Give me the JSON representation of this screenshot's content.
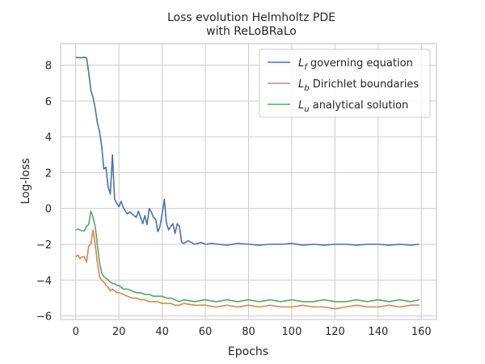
{
  "chart_data": {
    "type": "line",
    "title": "Loss evolution Helmholtz PDE",
    "subtitle": "with ReLoBRaLo",
    "xlabel": "Epochs",
    "ylabel": "Log-loss",
    "xlim": [
      -7,
      167
    ],
    "ylim": [
      -6.2,
      9.2
    ],
    "xticks": [
      0,
      20,
      40,
      60,
      80,
      100,
      120,
      140,
      160
    ],
    "yticks": [
      -6,
      -4,
      -2,
      0,
      2,
      4,
      6,
      8
    ],
    "grid": true,
    "legend_position": "top-right",
    "series": [
      {
        "name": "governing equation",
        "symbol": "L",
        "subscript": "f",
        "color": "#4c72b0",
        "x": [
          0,
          1,
          2,
          3,
          4,
          5,
          6,
          7,
          8,
          9,
          10,
          11,
          12,
          13,
          14,
          15,
          16,
          17,
          18,
          19,
          20,
          21,
          22,
          23,
          24,
          25,
          26,
          27,
          28,
          29,
          30,
          31,
          32,
          33,
          34,
          35,
          36,
          37,
          38,
          39,
          40,
          41,
          42,
          43,
          44,
          45,
          46,
          47,
          48,
          49,
          50,
          52,
          55,
          58,
          60,
          63,
          66,
          70,
          75,
          80,
          85,
          90,
          95,
          100,
          105,
          110,
          115,
          120,
          125,
          130,
          135,
          140,
          145,
          150,
          155,
          159
        ],
        "y": [
          8.45,
          8.42,
          8.42,
          8.42,
          8.45,
          8.4,
          7.6,
          6.6,
          6.2,
          5.6,
          4.8,
          4.3,
          3.5,
          2.2,
          2.3,
          1.2,
          0.8,
          3.0,
          0.5,
          0.3,
          0.1,
          0.4,
          0.05,
          -0.15,
          -0.3,
          -0.2,
          -0.3,
          -0.4,
          -0.5,
          -0.15,
          -0.5,
          -0.85,
          -0.4,
          -0.9,
          0.0,
          -0.2,
          -0.5,
          -0.6,
          -1.3,
          -1.0,
          -0.3,
          0.5,
          -0.8,
          -1.2,
          -1.0,
          -0.85,
          -1.4,
          -0.85,
          -1.0,
          -1.9,
          -1.95,
          -1.8,
          -2.0,
          -1.9,
          -2.0,
          -1.95,
          -2.0,
          -2.05,
          -1.95,
          -2.0,
          -2.05,
          -2.0,
          -2.0,
          -1.95,
          -2.05,
          -2.0,
          -2.05,
          -2.0,
          -2.0,
          -2.05,
          -2.0,
          -2.0,
          -2.05,
          -2.0,
          -2.05,
          -2.0
        ]
      },
      {
        "name": "Dirichlet boundaries",
        "symbol": "L",
        "subscript": "b",
        "color": "#dd8452",
        "x": [
          0,
          1,
          2,
          3,
          4,
          5,
          6,
          7,
          8,
          9,
          10,
          11,
          12,
          13,
          14,
          15,
          16,
          17,
          18,
          19,
          20,
          22,
          24,
          26,
          28,
          30,
          32,
          34,
          36,
          38,
          40,
          42,
          44,
          46,
          48,
          50,
          55,
          60,
          65,
          70,
          75,
          80,
          85,
          90,
          95,
          100,
          105,
          110,
          115,
          120,
          125,
          130,
          135,
          140,
          145,
          150,
          155,
          159
        ],
        "y": [
          -2.7,
          -2.6,
          -2.8,
          -2.7,
          -2.7,
          -3.0,
          -2.1,
          -2.0,
          -1.2,
          -2.0,
          -3.0,
          -3.8,
          -4.0,
          -4.1,
          -4.3,
          -4.4,
          -4.6,
          -4.5,
          -4.6,
          -4.7,
          -4.7,
          -4.8,
          -4.9,
          -5.0,
          -5.0,
          -5.1,
          -5.1,
          -5.2,
          -5.2,
          -5.2,
          -5.3,
          -5.3,
          -5.3,
          -5.4,
          -5.4,
          -5.3,
          -5.4,
          -5.4,
          -5.5,
          -5.4,
          -5.5,
          -5.4,
          -5.5,
          -5.4,
          -5.5,
          -5.5,
          -5.4,
          -5.5,
          -5.5,
          -5.6,
          -5.5,
          -5.4,
          -5.5,
          -5.5,
          -5.4,
          -5.5,
          -5.4,
          -5.4
        ]
      },
      {
        "name": "analytical solution",
        "symbol": "L",
        "subscript": "u",
        "color": "#55a868",
        "x": [
          0,
          1,
          2,
          3,
          4,
          5,
          6,
          7,
          8,
          9,
          10,
          11,
          12,
          13,
          14,
          15,
          16,
          17,
          18,
          19,
          20,
          22,
          24,
          26,
          28,
          30,
          32,
          34,
          36,
          38,
          40,
          42,
          44,
          46,
          48,
          50,
          55,
          60,
          65,
          70,
          75,
          80,
          85,
          90,
          95,
          100,
          105,
          110,
          115,
          120,
          125,
          130,
          135,
          140,
          145,
          150,
          155,
          159
        ],
        "y": [
          -1.2,
          -1.15,
          -1.2,
          -1.25,
          -1.25,
          -1.0,
          -0.9,
          -0.15,
          -0.5,
          -1.0,
          -2.0,
          -3.0,
          -3.6,
          -3.8,
          -3.9,
          -4.0,
          -4.1,
          -4.2,
          -4.2,
          -4.3,
          -4.3,
          -4.5,
          -4.5,
          -4.6,
          -4.7,
          -4.7,
          -4.8,
          -4.8,
          -4.9,
          -4.9,
          -4.9,
          -5.0,
          -5.0,
          -5.1,
          -5.2,
          -5.1,
          -5.2,
          -5.1,
          -5.2,
          -5.1,
          -5.2,
          -5.1,
          -5.2,
          -5.1,
          -5.2,
          -5.1,
          -5.2,
          -5.2,
          -5.1,
          -5.2,
          -5.2,
          -5.1,
          -5.2,
          -5.1,
          -5.2,
          -5.1,
          -5.2,
          -5.1
        ]
      }
    ]
  }
}
